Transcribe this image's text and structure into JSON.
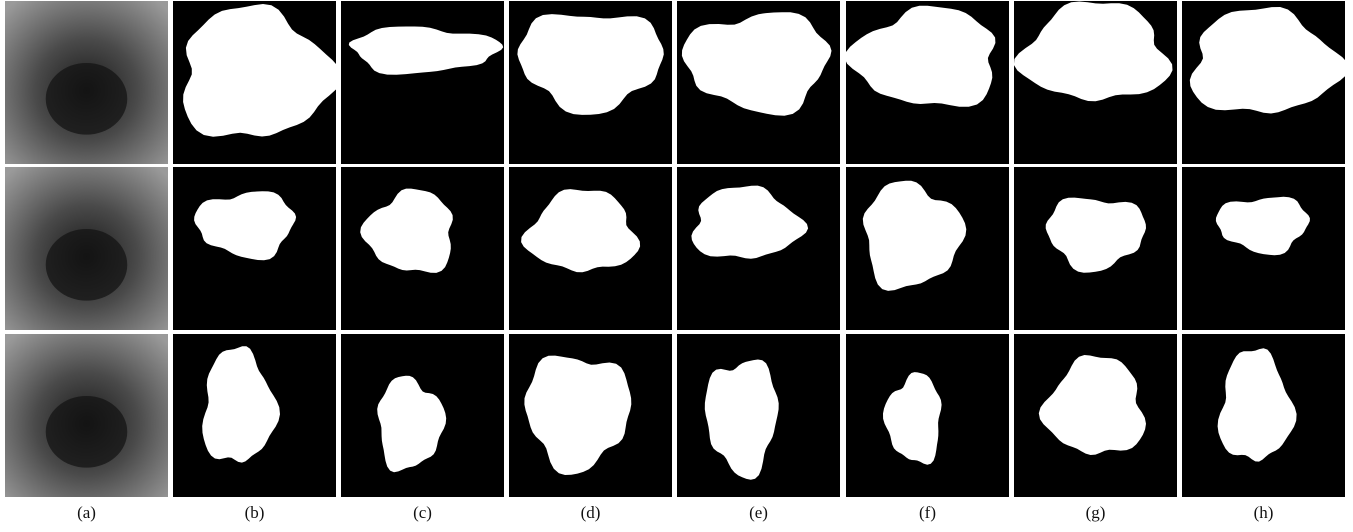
{
  "figure": {
    "labels": [
      "(a)",
      "(b)",
      "(c)",
      "(d)",
      "(e)",
      "(f)",
      "(g)",
      "(h)"
    ]
  }
}
